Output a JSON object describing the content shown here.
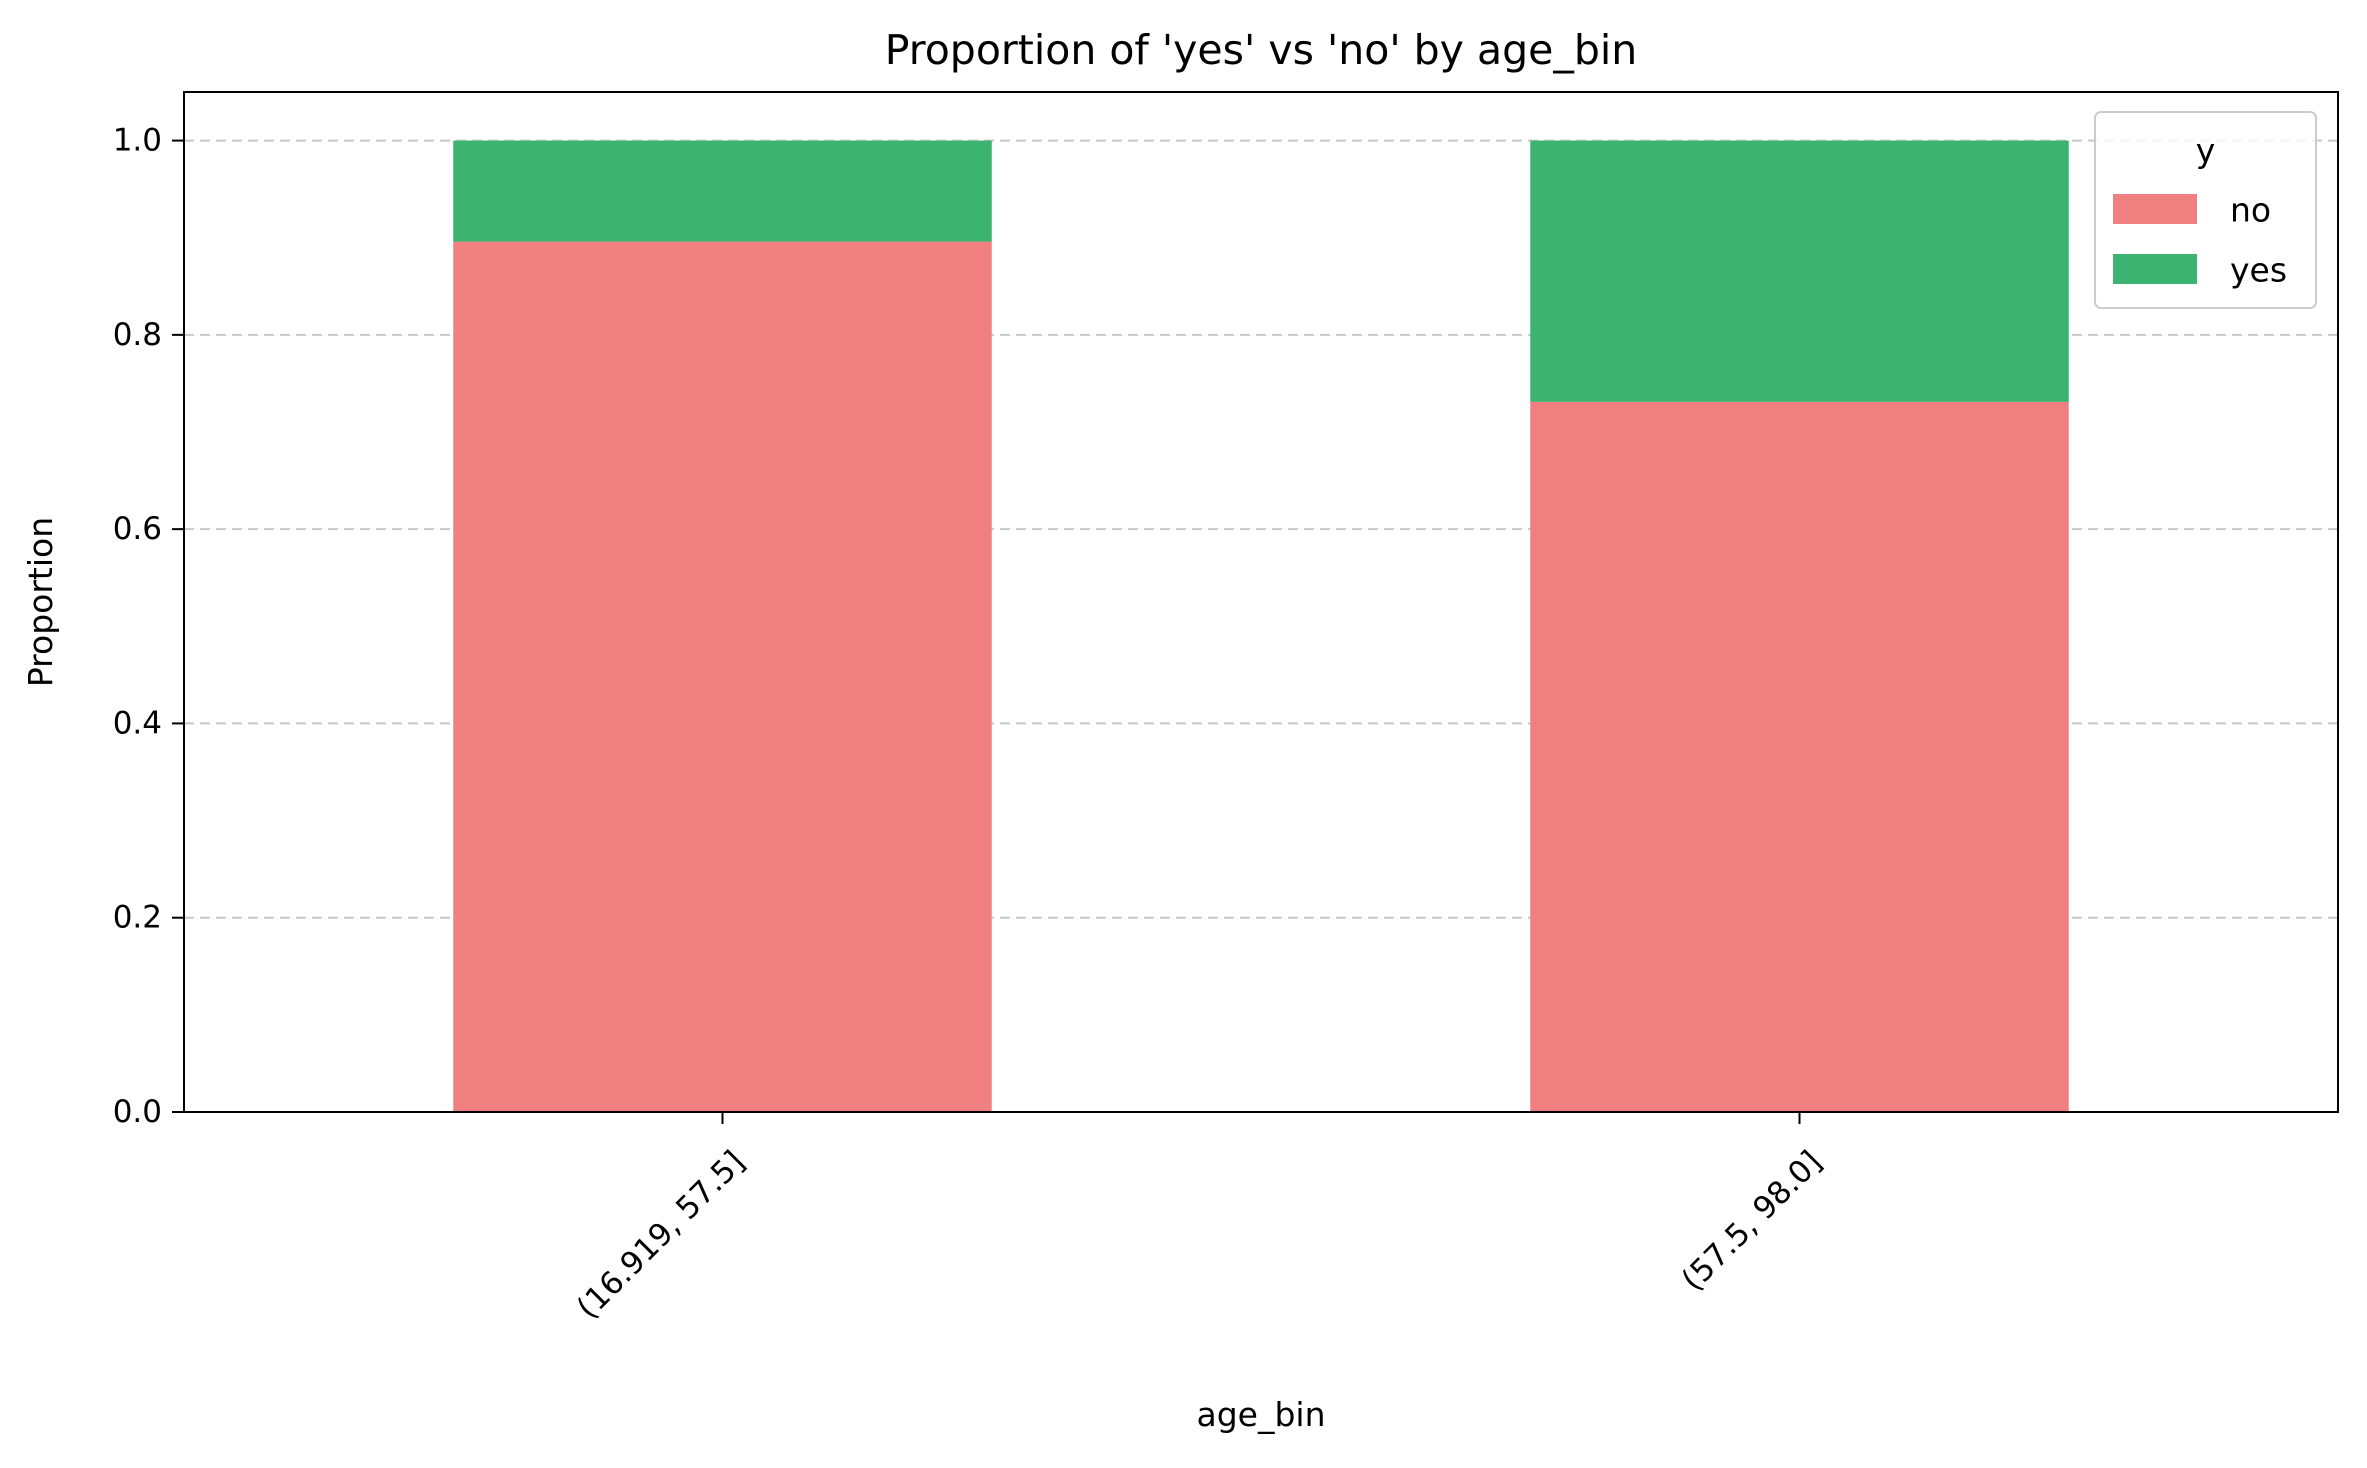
{
  "chart_data": {
    "type": "bar",
    "stacked": true,
    "title": "Proportion of 'yes' vs 'no' by age_bin",
    "xlabel": "age_bin",
    "ylabel": "Proportion",
    "categories": [
      "(16.919, 57.5]",
      "(57.5, 98.0]"
    ],
    "series": [
      {
        "name": "no",
        "color": "#f08080",
        "values": [
          0.896,
          0.731
        ]
      },
      {
        "name": "yes",
        "color": "#3cb371",
        "values": [
          0.104,
          0.269
        ]
      }
    ],
    "ylim": [
      0,
      1.05
    ],
    "yticks": [
      {
        "value": 0.0,
        "label": "0.0"
      },
      {
        "value": 0.2,
        "label": "0.2"
      },
      {
        "value": 0.4,
        "label": "0.4"
      },
      {
        "value": 0.6,
        "label": "0.6"
      },
      {
        "value": 0.8,
        "label": "0.8"
      },
      {
        "value": 1.0,
        "label": "1.0"
      }
    ],
    "grid": "y, dashed",
    "legend": {
      "title": "y",
      "position": "top-right"
    },
    "xtick_rotation_deg": 45
  }
}
